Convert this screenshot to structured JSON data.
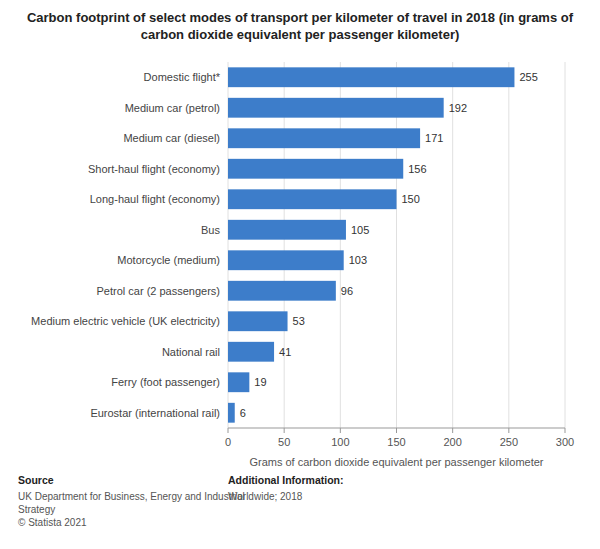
{
  "chart_data": {
    "type": "bar",
    "orientation": "horizontal",
    "title": "Carbon footprint of select modes of transport per kilometer of travel in 2018 (in grams of carbon dioxide equivalent per passenger kilometer)",
    "categories": [
      "Eurostar (international rail)",
      "Ferry (foot passenger)",
      "National rail",
      "Medium electric vehicle (UK electricity)",
      "Petrol car (2 passengers)",
      "Motorcycle (medium)",
      "Bus",
      "Long-haul flight (economy)",
      "Short-haul flight (economy)",
      "Medium car (diesel)",
      "Medium car (petrol)",
      "Domestic flight*"
    ],
    "values": [
      6,
      19,
      41,
      53,
      96,
      103,
      105,
      150,
      156,
      171,
      192,
      255
    ],
    "color": "#3d7dca",
    "xlabel": "Grams of carbon dioxide equivalent per passenger kilometer",
    "xlim": [
      0,
      300
    ],
    "xticks": [
      0,
      50,
      100,
      150,
      200,
      250,
      300
    ],
    "grid": true,
    "data_labels": true,
    "annotations": [
      "Source",
      "UK Department for Business, Energy and Industrial\nStrategy\n© Statista 2021",
      "Additional Information:",
      "Worldwide; 2018"
    ]
  }
}
